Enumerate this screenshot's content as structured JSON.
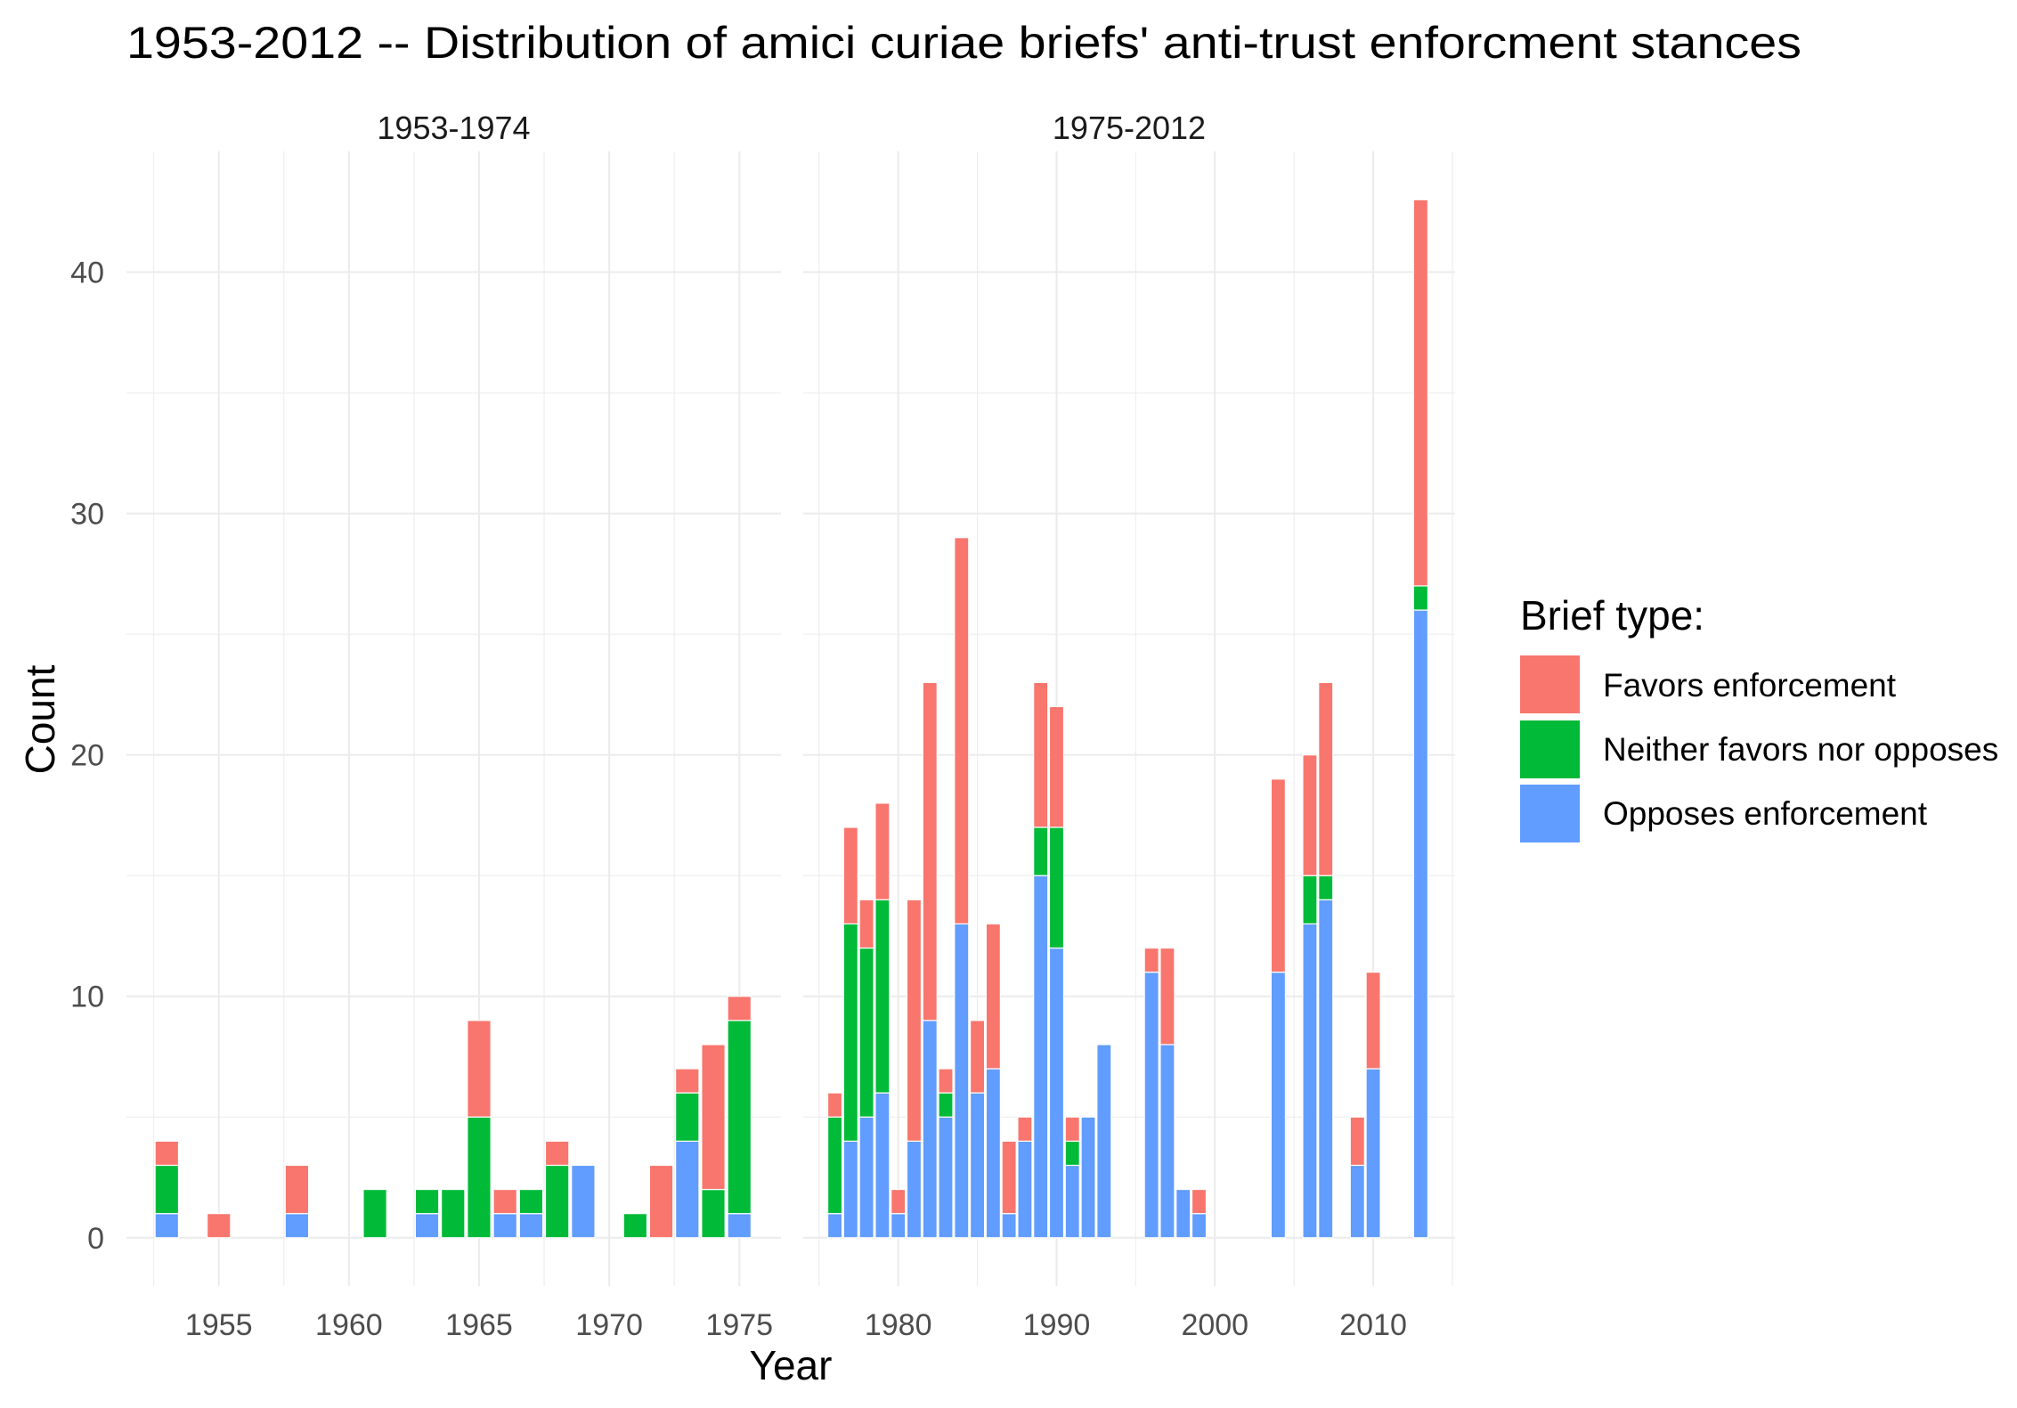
{
  "chart_data": {
    "type": "bar",
    "stacked": true,
    "title": "1953-2012 -- Distribution of amici curiae briefs' anti-trust enforcment stances",
    "xlabel": "Year",
    "ylabel": "Count",
    "ylim": [
      -2,
      45
    ],
    "yticks": [
      0,
      10,
      20,
      30,
      40
    ],
    "grid": true,
    "legend": {
      "title": "Brief type:",
      "position": "right"
    },
    "series": [
      {
        "key": "favors",
        "name": "Favors enforcement",
        "color": "#F8766D"
      },
      {
        "key": "neither",
        "name": "Neither favors nor opposes",
        "color": "#00BA38"
      },
      {
        "key": "opposes",
        "name": "Opposes enforcement",
        "color": "#619CFF"
      }
    ],
    "panels": [
      {
        "label": "1953-1974",
        "xlim": [
          1951.45,
          1976.6
        ],
        "xticks": [
          1955,
          1960,
          1965,
          1970,
          1975
        ],
        "data": [
          {
            "year": 1953,
            "opposes": 1,
            "neither": 2,
            "favors": 1
          },
          {
            "year": 1955,
            "opposes": 0,
            "neither": 0,
            "favors": 1
          },
          {
            "year": 1958,
            "opposes": 1,
            "neither": 0,
            "favors": 2
          },
          {
            "year": 1961,
            "opposes": 0,
            "neither": 2,
            "favors": 0
          },
          {
            "year": 1963,
            "opposes": 1,
            "neither": 1,
            "favors": 0
          },
          {
            "year": 1964,
            "opposes": 0,
            "neither": 2,
            "favors": 0
          },
          {
            "year": 1965,
            "opposes": 0,
            "neither": 5,
            "favors": 4
          },
          {
            "year": 1966,
            "opposes": 1,
            "neither": 0,
            "favors": 1
          },
          {
            "year": 1967,
            "opposes": 1,
            "neither": 1,
            "favors": 0
          },
          {
            "year": 1968,
            "opposes": 0,
            "neither": 3,
            "favors": 1
          },
          {
            "year": 1969,
            "opposes": 3,
            "neither": 0,
            "favors": 0
          },
          {
            "year": 1971,
            "opposes": 0,
            "neither": 1,
            "favors": 0
          },
          {
            "year": 1972,
            "opposes": 0,
            "neither": 0,
            "favors": 3
          },
          {
            "year": 1973,
            "opposes": 4,
            "neither": 2,
            "favors": 1
          },
          {
            "year": 1974,
            "opposes": 0,
            "neither": 2,
            "favors": 6
          },
          {
            "year": 1975,
            "opposes": 1,
            "neither": 8,
            "favors": 1
          }
        ]
      },
      {
        "label": "1975-2012",
        "xlim": [
          1974.0,
          2015.17
        ],
        "xticks": [
          1980,
          1990,
          2000,
          2010
        ],
        "data": [
          {
            "year": 1976,
            "opposes": 1,
            "neither": 4,
            "favors": 1
          },
          {
            "year": 1977,
            "opposes": 4,
            "neither": 9,
            "favors": 4
          },
          {
            "year": 1978,
            "opposes": 5,
            "neither": 7,
            "favors": 2
          },
          {
            "year": 1979,
            "opposes": 6,
            "neither": 8,
            "favors": 4
          },
          {
            "year": 1980,
            "opposes": 1,
            "neither": 0,
            "favors": 1
          },
          {
            "year": 1981,
            "opposes": 4,
            "neither": 0,
            "favors": 10
          },
          {
            "year": 1982,
            "opposes": 9,
            "neither": 0,
            "favors": 14
          },
          {
            "year": 1983,
            "opposes": 5,
            "neither": 1,
            "favors": 1
          },
          {
            "year": 1984,
            "opposes": 13,
            "neither": 0,
            "favors": 16
          },
          {
            "year": 1985,
            "opposes": 6,
            "neither": 0,
            "favors": 3
          },
          {
            "year": 1986,
            "opposes": 7,
            "neither": 0,
            "favors": 6
          },
          {
            "year": 1987,
            "opposes": 1,
            "neither": 0,
            "favors": 3
          },
          {
            "year": 1988,
            "opposes": 4,
            "neither": 0,
            "favors": 1
          },
          {
            "year": 1989,
            "opposes": 15,
            "neither": 2,
            "favors": 6
          },
          {
            "year": 1990,
            "opposes": 12,
            "neither": 5,
            "favors": 5
          },
          {
            "year": 1991,
            "opposes": 3,
            "neither": 1,
            "favors": 1
          },
          {
            "year": 1992,
            "opposes": 5,
            "neither": 0,
            "favors": 0
          },
          {
            "year": 1993,
            "opposes": 8,
            "neither": 0,
            "favors": 0
          },
          {
            "year": 1996,
            "opposes": 11,
            "neither": 0,
            "favors": 1
          },
          {
            "year": 1997,
            "opposes": 8,
            "neither": 0,
            "favors": 4
          },
          {
            "year": 1998,
            "opposes": 2,
            "neither": 0,
            "favors": 0
          },
          {
            "year": 1999,
            "opposes": 1,
            "neither": 0,
            "favors": 1
          },
          {
            "year": 2004,
            "opposes": 11,
            "neither": 0,
            "favors": 8
          },
          {
            "year": 2006,
            "opposes": 13,
            "neither": 2,
            "favors": 5
          },
          {
            "year": 2007,
            "opposes": 14,
            "neither": 1,
            "favors": 8
          },
          {
            "year": 2009,
            "opposes": 3,
            "neither": 0,
            "favors": 2
          },
          {
            "year": 2010,
            "opposes": 7,
            "neither": 0,
            "favors": 4
          },
          {
            "year": 2013,
            "opposes": 26,
            "neither": 1,
            "favors": 16
          }
        ]
      }
    ]
  }
}
